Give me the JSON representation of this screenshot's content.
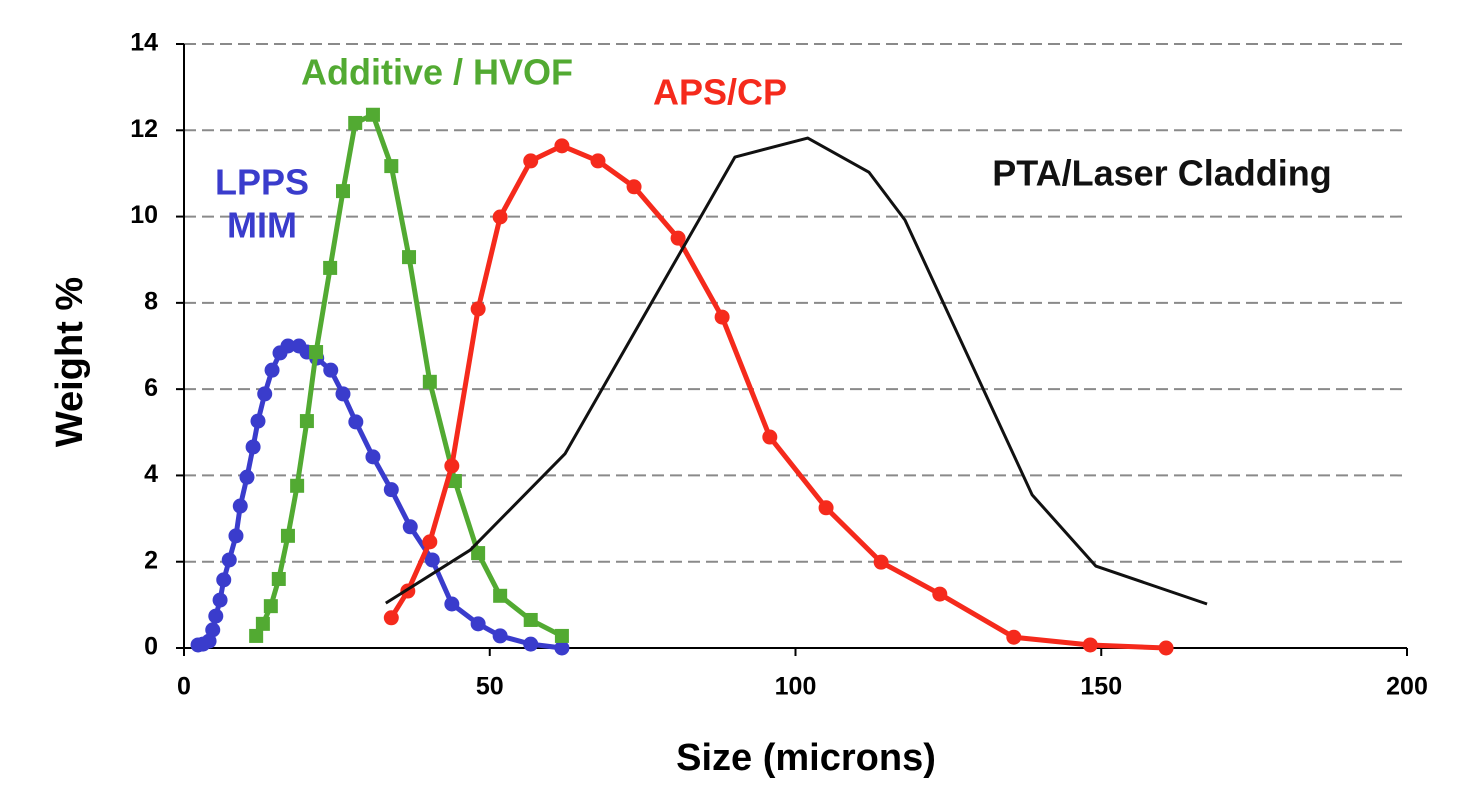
{
  "chart_data": {
    "type": "line",
    "xlabel": "Size (microns)",
    "ylabel": "Weight %",
    "xlim": [
      0,
      200
    ],
    "xticks": [
      0,
      50,
      100,
      150,
      200
    ],
    "ylim": [
      0,
      14
    ],
    "yticks": [
      0,
      2,
      4,
      6,
      8,
      10,
      12,
      14
    ],
    "grid": true,
    "series": [
      {
        "name": [
          "LPPS",
          "MIM"
        ],
        "color": "#3a3ccc",
        "marker": "circle",
        "x": [
          2.3,
          3.1,
          4.1,
          4.7,
          5.2,
          5.9,
          6.5,
          7.4,
          8.5,
          9.2,
          10.3,
          11.3,
          12.1,
          13.2,
          14.4,
          15.7,
          17.0,
          18.8,
          20.1,
          21.7,
          24.0,
          26.0,
          28.1,
          30.9,
          33.9,
          37.0,
          40.6,
          43.8,
          48.1,
          51.7,
          56.7,
          61.8
        ],
        "values": [
          0.07,
          0.09,
          0.16,
          0.42,
          0.74,
          1.11,
          1.58,
          2.04,
          2.6,
          3.29,
          3.96,
          4.66,
          5.26,
          5.89,
          6.44,
          6.84,
          7.0,
          7.0,
          6.86,
          6.72,
          6.44,
          5.89,
          5.24,
          4.43,
          3.67,
          2.81,
          2.04,
          1.02,
          0.56,
          0.28,
          0.09,
          0.0
        ]
      },
      {
        "name": "Additive / HVOF",
        "color": "#52aa32",
        "marker": "square",
        "x": [
          11.8,
          12.9,
          14.2,
          15.5,
          17.0,
          18.5,
          20.1,
          21.6,
          23.9,
          26.0,
          28.0,
          30.9,
          33.9,
          36.8,
          40.2,
          44.3,
          48.1,
          51.7,
          56.7,
          61.8
        ],
        "values": [
          0.28,
          0.56,
          0.97,
          1.6,
          2.6,
          3.76,
          5.26,
          6.86,
          8.81,
          10.59,
          12.17,
          12.36,
          11.17,
          9.06,
          6.17,
          3.87,
          2.2,
          1.21,
          0.65,
          0.28
        ]
      },
      {
        "name": "APS/CP",
        "color": "#f52a1c",
        "marker": "circle",
        "x": [
          33.9,
          36.6,
          40.2,
          43.8,
          48.1,
          51.7,
          56.7,
          61.8,
          67.7,
          73.6,
          80.8,
          88.0,
          95.8,
          105.0,
          114.0,
          123.6,
          135.7,
          148.2,
          160.6
        ],
        "values": [
          0.7,
          1.32,
          2.46,
          4.22,
          7.86,
          9.99,
          11.29,
          11.64,
          11.29,
          10.69,
          9.5,
          7.67,
          4.89,
          3.25,
          1.99,
          1.25,
          0.25,
          0.07,
          0.0
        ]
      },
      {
        "name": "PTA/Laser Cladding",
        "color": "#111111",
        "marker": null,
        "x": [
          33.0,
          46.8,
          62.3,
          90.1,
          102.0,
          112.0,
          117.9,
          138.7,
          149.1,
          167.3
        ],
        "values": [
          1.04,
          2.27,
          4.5,
          11.38,
          11.82,
          11.03,
          9.92,
          3.55,
          1.9,
          1.02
        ]
      }
    ]
  }
}
